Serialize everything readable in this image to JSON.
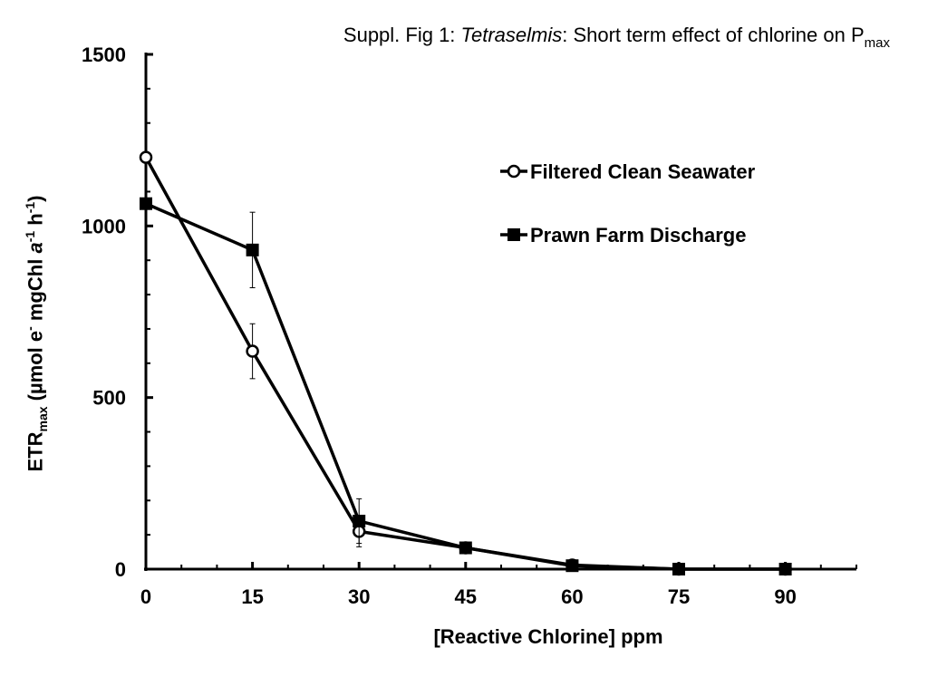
{
  "chart_data": {
    "type": "line",
    "title": {
      "prefix": "Suppl. Fig 1: ",
      "italic": "Tetraselmis",
      "suffix": ": Short term effect of chlorine on  P",
      "subscript": "max"
    },
    "xlabel": "[Reactive Chlorine] ppm",
    "ylabel": {
      "main": "ETR",
      "sub": "max",
      "part1": " (µmol e",
      "sup1": "-",
      "part2": " mgChl ",
      "italic": "a",
      "sup2": "-1",
      "part3": " h",
      "sup3": "-1",
      "part4": ")"
    },
    "xlim": [
      0,
      100
    ],
    "ylim": [
      0,
      1500
    ],
    "xticks": [
      0,
      15,
      30,
      45,
      60,
      75,
      90
    ],
    "yticks": [
      0,
      500,
      1000,
      1500
    ],
    "legend_position": "right",
    "grid": false,
    "series": [
      {
        "name": "Filtered Clean Seawater",
        "marker": "circle-open",
        "x": [
          0,
          15,
          30,
          45,
          60,
          75,
          90
        ],
        "y": [
          1200,
          635,
          110,
          62,
          12,
          0,
          0
        ],
        "err": [
          0,
          80,
          45,
          0,
          0,
          0,
          0
        ]
      },
      {
        "name": "Prawn Farm Discharge",
        "marker": "square-filled",
        "x": [
          0,
          15,
          30,
          45,
          60,
          75,
          90
        ],
        "y": [
          1065,
          930,
          140,
          62,
          10,
          0,
          0
        ],
        "err": [
          0,
          110,
          65,
          0,
          0,
          0,
          0
        ]
      }
    ]
  }
}
